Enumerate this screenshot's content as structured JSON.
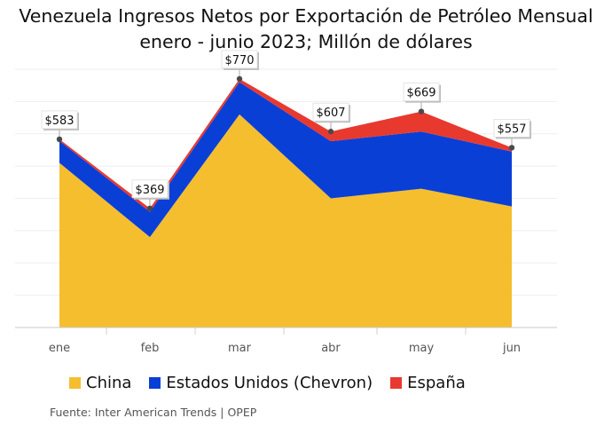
{
  "title_line1": "Venezuela Ingresos Netos por Exportación de Petróleo Mensual",
  "title_line2": "enero - junio 2023; Millón de dólares",
  "source": "Fuente: Inter American Trends | OPEP",
  "chart_data": {
    "type": "area",
    "stacked": true,
    "categories": [
      "ene",
      "feb",
      "mar",
      "abr",
      "may",
      "jun"
    ],
    "series": [
      {
        "name": "China",
        "color": "#F5BE2E",
        "values": [
          510,
          280,
          660,
          400,
          430,
          375
        ]
      },
      {
        "name": "Estados Unidos (Chevron)",
        "color": "#0A3FD6",
        "values": [
          68,
          78,
          100,
          177,
          177,
          170
        ]
      },
      {
        "name": "España",
        "color": "#E8392F",
        "values": [
          5,
          11,
          10,
          30,
          62,
          12
        ]
      }
    ],
    "totals": [
      583,
      369,
      770,
      607,
      669,
      557
    ],
    "data_labels": [
      "$583",
      "$369",
      "$770",
      "$607",
      "$669",
      "$557"
    ],
    "ylim": [
      0,
      800
    ],
    "grid": true,
    "legend_position": "bottom"
  }
}
